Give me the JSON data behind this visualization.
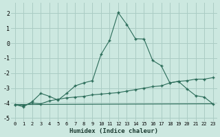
{
  "xlabel": "Humidex (Indice chaleur)",
  "background_color": "#cce8e0",
  "grid_color": "#aaccC4",
  "line_color": "#2a6b58",
  "xlim": [
    -0.5,
    23.5
  ],
  "ylim": [
    -5.2,
    2.7
  ],
  "xtick_labels": [
    "0",
    "1",
    "2",
    "3",
    "4",
    "5",
    "6",
    "7",
    "8",
    "9",
    "10",
    "11",
    "12",
    "13",
    "14",
    "15",
    "16",
    "17",
    "18",
    "19",
    "20",
    "21",
    "22",
    "23"
  ],
  "yticks": [
    -5,
    -4,
    -3,
    -2,
    -1,
    0,
    1,
    2
  ],
  "series1_x": [
    0,
    1,
    2,
    3,
    4,
    5,
    6,
    7,
    8,
    9,
    10,
    11,
    12,
    13,
    14,
    15,
    16,
    17,
    18,
    19,
    20,
    21,
    22,
    23
  ],
  "series1_y": [
    -4.1,
    -4.25,
    -3.9,
    -3.35,
    -3.55,
    -3.8,
    -3.35,
    -2.85,
    -2.65,
    -2.5,
    -0.75,
    0.2,
    2.05,
    1.25,
    0.3,
    0.28,
    -1.15,
    -1.5,
    -2.65,
    -2.55,
    -3.05,
    -3.5,
    -3.6,
    -4.05
  ],
  "series2_x": [
    0,
    1,
    2,
    3,
    4,
    5,
    6,
    7,
    8,
    9,
    10,
    11,
    12,
    13,
    14,
    15,
    16,
    17,
    18,
    19,
    20,
    21,
    22,
    23
  ],
  "series2_y": [
    -4.1,
    -4.15,
    -4.0,
    -4.05,
    -3.85,
    -3.75,
    -3.65,
    -3.6,
    -3.55,
    -3.45,
    -3.4,
    -3.35,
    -3.3,
    -3.2,
    -3.1,
    -3.0,
    -2.9,
    -2.85,
    -2.65,
    -2.55,
    -2.5,
    -2.4,
    -2.4,
    -2.3
  ],
  "series3_x": [
    0,
    23
  ],
  "series3_y": [
    -4.1,
    -4.05
  ]
}
